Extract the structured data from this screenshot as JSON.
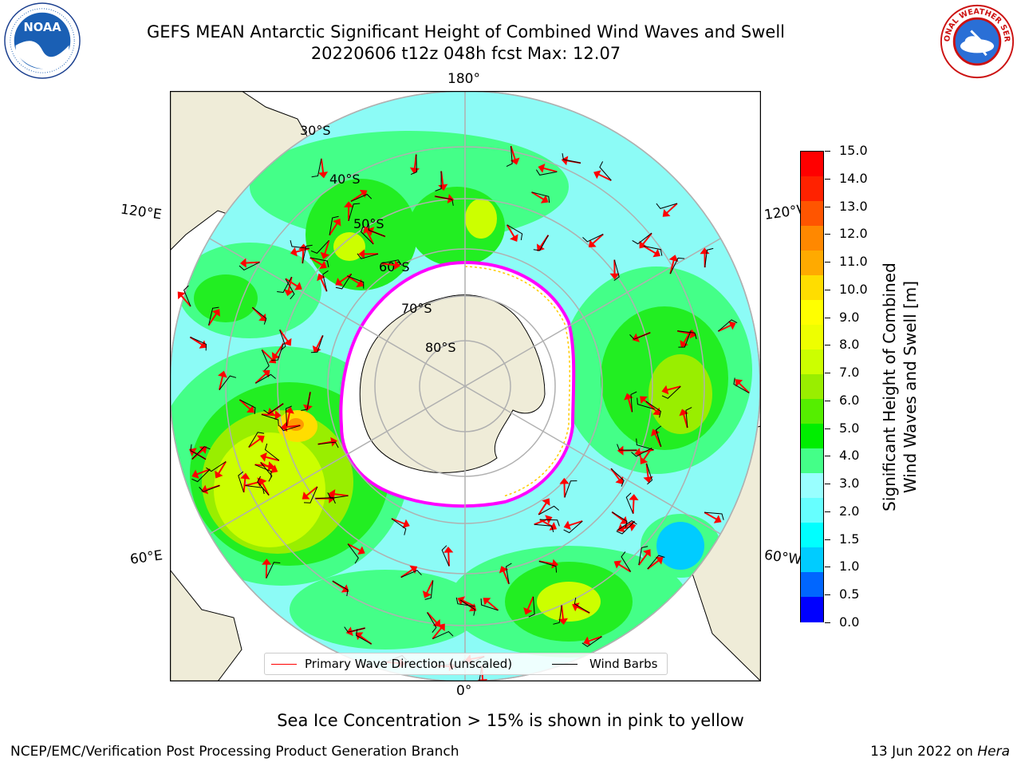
{
  "header": {
    "title_line1": "GEFS MEAN Antarctic Significant Height of Combined Wind Waves and Swell",
    "title_line2": "20220606 t12z 048h fcst   Max: 12.07"
  },
  "logos": {
    "left": "NOAA",
    "right_text": "NATIONAL WEATHER SERVICE"
  },
  "map": {
    "projection": "south-polar-stereographic",
    "lon_labels": {
      "top": "180°",
      "bottom": "0°",
      "left_upper": "120°E",
      "left_lower": "60°E",
      "right_upper": "120°W",
      "right_lower": "60°W"
    },
    "lat_labels": [
      "30°S",
      "40°S",
      "50°S",
      "60°S",
      "70°S",
      "80°S"
    ],
    "land_color": "#efecd8",
    "ocean_fill_color": "#8cfbf6",
    "ice_edge_colors": [
      "#ff00ff",
      "#ffcc00"
    ]
  },
  "colorbar": {
    "label_line1": "Significant Height of Combined",
    "label_line2": "Wind Waves and Swell [m]",
    "ticks": [
      "15.0",
      "14.0",
      "13.0",
      "12.0",
      "11.0",
      "10.0",
      "9.0",
      "8.0",
      "7.0",
      "6.0",
      "5.0",
      "4.0",
      "3.0",
      "2.0",
      "1.5",
      "1.0",
      "0.5",
      "0.0"
    ],
    "colors": [
      "#0000ff",
      "#0066ff",
      "#00ccff",
      "#00ffff",
      "#66ffff",
      "#99ffff",
      "#44ff88",
      "#00ee00",
      "#55ee00",
      "#99ee00",
      "#ccff00",
      "#eeff00",
      "#ffff00",
      "#ffdd00",
      "#ffaa00",
      "#ff8800",
      "#ff5500",
      "#ff2200",
      "#ff0000"
    ]
  },
  "legend": {
    "item1": "Primary Wave Direction (unscaled)",
    "item1_color": "#ff0000",
    "item2": "Wind Barbs",
    "item2_color": "#000000"
  },
  "footnote": "Sea Ice Concentration > 15% is shown in pink to yellow",
  "footer": {
    "credit": "NCEP/EMC/Verification Post Processing Product Generation Branch",
    "date": "13 Jun 2022 on",
    "machine": "Hera"
  }
}
